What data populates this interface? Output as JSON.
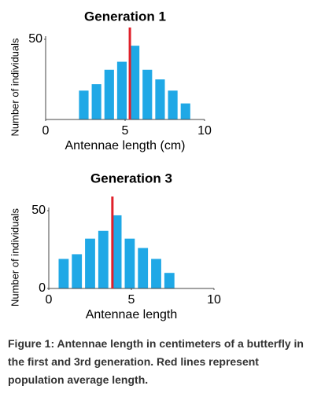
{
  "chart_data": [
    {
      "type": "histogram",
      "title": "Generation 1",
      "x_label": "Antennae length (cm)",
      "y_label": "Number of individuals",
      "bins": [
        2,
        2.8,
        3.6,
        4.4,
        5.2,
        6,
        6.8,
        7.6,
        8.4,
        9.2
      ],
      "values": [
        18,
        22,
        31,
        36,
        46,
        31,
        25,
        18,
        10
      ],
      "color": "#1fa8e6",
      "xlim": [
        0,
        10
      ],
      "xticks": [
        0,
        5,
        10
      ],
      "ylim": [
        0,
        50
      ],
      "yticks": [
        50
      ],
      "mean": 5.3,
      "mean_color": "#e0202a"
    },
    {
      "type": "histogram",
      "title": "Generation 3",
      "x_label": "Antennae length",
      "y_label": "Number of individuals",
      "bins": [
        0.5,
        1.3,
        2.1,
        2.9,
        3.7,
        4.5,
        5.3,
        6.1,
        6.9,
        7.7
      ],
      "values": [
        19,
        22,
        32,
        37,
        47,
        32,
        26,
        19,
        10
      ],
      "color": "#1fa8e6",
      "xlim": [
        0,
        10
      ],
      "xticks": [
        0,
        5,
        10
      ],
      "ylim": [
        0,
        50
      ],
      "yticks": [
        0,
        50
      ],
      "mean": 3.85,
      "mean_color": "#e0202a"
    }
  ],
  "caption": "Figure 1: Antennae length in centimeters of a butterfly in the first and 3rd generation. Red lines represent population average length."
}
